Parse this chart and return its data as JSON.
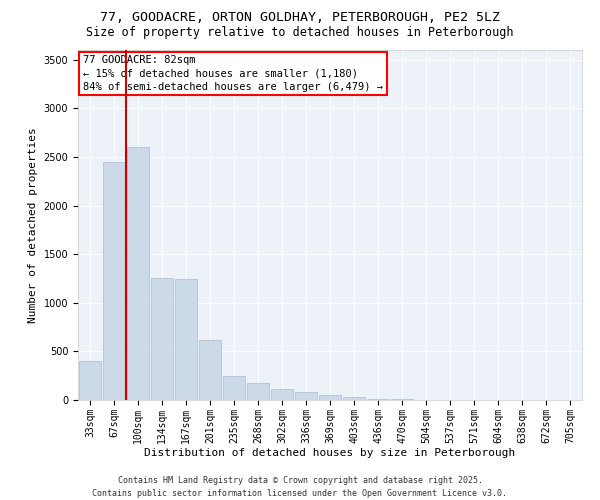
{
  "title1": "77, GOODACRE, ORTON GOLDHAY, PETERBOROUGH, PE2 5LZ",
  "title2": "Size of property relative to detached houses in Peterborough",
  "xlabel": "Distribution of detached houses by size in Peterborough",
  "ylabel": "Number of detached properties",
  "categories": [
    "33sqm",
    "67sqm",
    "100sqm",
    "134sqm",
    "167sqm",
    "201sqm",
    "235sqm",
    "268sqm",
    "302sqm",
    "336sqm",
    "369sqm",
    "403sqm",
    "436sqm",
    "470sqm",
    "504sqm",
    "537sqm",
    "571sqm",
    "604sqm",
    "638sqm",
    "672sqm",
    "705sqm"
  ],
  "values": [
    400,
    2450,
    2600,
    1250,
    1240,
    620,
    250,
    170,
    110,
    80,
    50,
    30,
    15,
    10,
    5,
    3,
    2,
    1,
    0,
    0,
    0
  ],
  "bar_color": "#ccd9e8",
  "bar_edge_color": "#aabbd0",
  "vline_color": "#cc0000",
  "vline_pos": 1.48,
  "annotation_title": "77 GOODACRE: 82sqm",
  "annotation_line1": "← 15% of detached houses are smaller (1,180)",
  "annotation_line2": "84% of semi-detached houses are larger (6,479) →",
  "ylim": [
    0,
    3600
  ],
  "yticks": [
    0,
    500,
    1000,
    1500,
    2000,
    2500,
    3000,
    3500
  ],
  "bg_color": "#edf2f8",
  "footer1": "Contains HM Land Registry data © Crown copyright and database right 2025.",
  "footer2": "Contains public sector information licensed under the Open Government Licence v3.0.",
  "title_fontsize": 9.5,
  "subtitle_fontsize": 8.5,
  "annotation_fontsize": 7.5,
  "axis_label_fontsize": 8,
  "tick_fontsize": 7,
  "footer_fontsize": 6
}
